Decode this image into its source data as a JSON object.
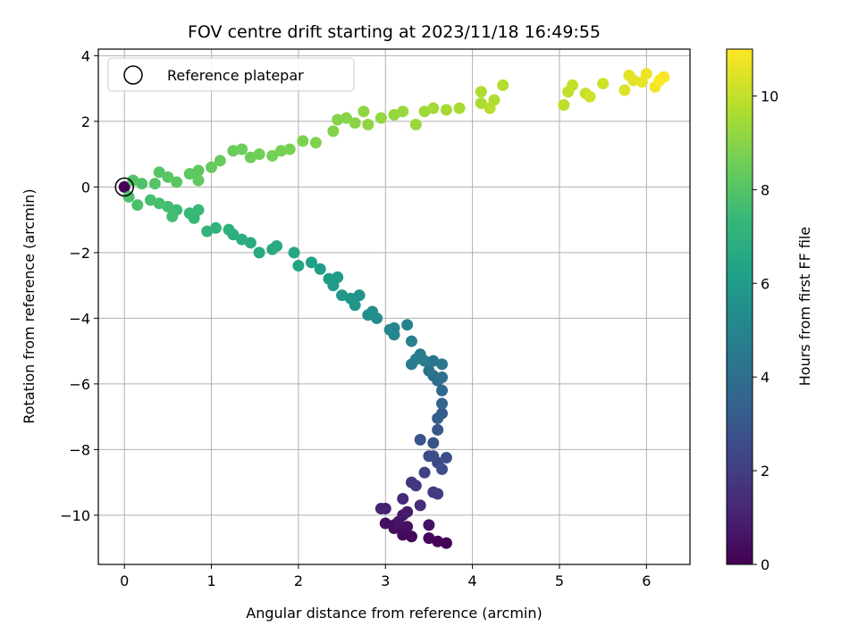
{
  "chart_data": {
    "type": "scatter",
    "title": "FOV centre drift starting at 2023/11/18 16:49:55",
    "xlabel": "Angular distance from reference (arcmin)",
    "ylabel": "Rotation from reference (arcmin)",
    "xlim": [
      -0.3,
      6.5
    ],
    "ylim": [
      -11.5,
      4.2
    ],
    "xticks": [
      0,
      1,
      2,
      3,
      4,
      5,
      6
    ],
    "yticks": [
      4,
      2,
      0,
      -2,
      -4,
      -6,
      -8,
      -10
    ],
    "grid": true,
    "legend": {
      "label": "Reference platepar",
      "placement": "top-left"
    },
    "reference_point": {
      "x": 0,
      "y": 0
    },
    "colorbar": {
      "label": "Hours from first FF file",
      "range": [
        0,
        11
      ],
      "ticks": [
        0,
        2,
        4,
        6,
        8,
        10
      ],
      "colormap": "viridis",
      "colors": [
        "#440154",
        "#482878",
        "#3e4989",
        "#31688e",
        "#26828e",
        "#1f9e89",
        "#35b779",
        "#6ece58",
        "#b5de2b",
        "#fde725"
      ]
    },
    "points": [
      {
        "x": 0.0,
        "y": 0.0,
        "t": 0.0
      },
      {
        "x": 3.7,
        "y": -10.85,
        "t": 0.0
      },
      {
        "x": 3.6,
        "y": -10.8,
        "t": 0.1
      },
      {
        "x": 3.5,
        "y": -10.7,
        "t": 0.15
      },
      {
        "x": 3.3,
        "y": -10.65,
        "t": 0.2
      },
      {
        "x": 3.2,
        "y": -10.6,
        "t": 0.25
      },
      {
        "x": 3.1,
        "y": -10.4,
        "t": 0.3
      },
      {
        "x": 3.2,
        "y": -10.45,
        "t": 0.35
      },
      {
        "x": 3.0,
        "y": -10.25,
        "t": 0.4
      },
      {
        "x": 3.1,
        "y": -10.3,
        "t": 0.45
      },
      {
        "x": 3.25,
        "y": -10.35,
        "t": 0.5
      },
      {
        "x": 3.5,
        "y": -10.3,
        "t": 0.55
      },
      {
        "x": 3.15,
        "y": -10.2,
        "t": 0.6
      },
      {
        "x": 3.2,
        "y": -10.0,
        "t": 0.7
      },
      {
        "x": 3.25,
        "y": -9.9,
        "t": 0.8
      },
      {
        "x": 3.0,
        "y": -9.8,
        "t": 1.0
      },
      {
        "x": 2.95,
        "y": -9.8,
        "t": 1.05
      },
      {
        "x": 3.2,
        "y": -9.5,
        "t": 1.3
      },
      {
        "x": 3.4,
        "y": -9.7,
        "t": 1.4
      },
      {
        "x": 3.3,
        "y": -9.0,
        "t": 1.7
      },
      {
        "x": 3.35,
        "y": -9.1,
        "t": 1.8
      },
      {
        "x": 3.55,
        "y": -9.3,
        "t": 1.9
      },
      {
        "x": 3.6,
        "y": -9.35,
        "t": 1.95
      },
      {
        "x": 3.45,
        "y": -8.7,
        "t": 2.1
      },
      {
        "x": 3.5,
        "y": -8.2,
        "t": 2.4
      },
      {
        "x": 3.6,
        "y": -8.4,
        "t": 2.5
      },
      {
        "x": 3.55,
        "y": -8.2,
        "t": 2.6
      },
      {
        "x": 3.65,
        "y": -8.6,
        "t": 2.65
      },
      {
        "x": 3.7,
        "y": -8.25,
        "t": 2.7
      },
      {
        "x": 3.55,
        "y": -7.8,
        "t": 2.8
      },
      {
        "x": 3.4,
        "y": -7.7,
        "t": 2.9
      },
      {
        "x": 3.6,
        "y": -7.4,
        "t": 3.0
      },
      {
        "x": 3.65,
        "y": -6.9,
        "t": 3.2
      },
      {
        "x": 3.6,
        "y": -7.05,
        "t": 3.3
      },
      {
        "x": 3.65,
        "y": -6.6,
        "t": 3.5
      },
      {
        "x": 3.65,
        "y": -6.2,
        "t": 3.7
      },
      {
        "x": 3.6,
        "y": -5.9,
        "t": 3.9
      },
      {
        "x": 3.55,
        "y": -5.75,
        "t": 4.0
      },
      {
        "x": 3.65,
        "y": -5.8,
        "t": 4.05
      },
      {
        "x": 3.5,
        "y": -5.6,
        "t": 4.2
      },
      {
        "x": 3.55,
        "y": -5.3,
        "t": 4.3
      },
      {
        "x": 3.65,
        "y": -5.4,
        "t": 4.35
      },
      {
        "x": 3.4,
        "y": -5.1,
        "t": 4.5
      },
      {
        "x": 3.45,
        "y": -5.3,
        "t": 4.55
      },
      {
        "x": 3.3,
        "y": -5.4,
        "t": 4.6
      },
      {
        "x": 3.35,
        "y": -5.25,
        "t": 4.65
      },
      {
        "x": 3.3,
        "y": -4.7,
        "t": 4.8
      },
      {
        "x": 3.25,
        "y": -4.2,
        "t": 4.9
      },
      {
        "x": 3.1,
        "y": -4.3,
        "t": 5.0
      },
      {
        "x": 3.05,
        "y": -4.35,
        "t": 5.05
      },
      {
        "x": 3.1,
        "y": -4.5,
        "t": 5.1
      },
      {
        "x": 2.9,
        "y": -4.0,
        "t": 5.3
      },
      {
        "x": 2.85,
        "y": -3.8,
        "t": 5.4
      },
      {
        "x": 2.8,
        "y": -3.9,
        "t": 5.45
      },
      {
        "x": 2.7,
        "y": -3.3,
        "t": 5.6
      },
      {
        "x": 2.65,
        "y": -3.6,
        "t": 5.7
      },
      {
        "x": 2.6,
        "y": -3.4,
        "t": 5.75
      },
      {
        "x": 2.5,
        "y": -3.3,
        "t": 5.8
      },
      {
        "x": 2.4,
        "y": -3.0,
        "t": 5.9
      },
      {
        "x": 2.45,
        "y": -2.75,
        "t": 6.0
      },
      {
        "x": 2.35,
        "y": -2.8,
        "t": 6.05
      },
      {
        "x": 2.25,
        "y": -2.5,
        "t": 6.1
      },
      {
        "x": 2.15,
        "y": -2.3,
        "t": 6.2
      },
      {
        "x": 2.0,
        "y": -2.4,
        "t": 6.4
      },
      {
        "x": 1.95,
        "y": -2.0,
        "t": 6.5
      },
      {
        "x": 1.75,
        "y": -1.8,
        "t": 6.6
      },
      {
        "x": 1.7,
        "y": -1.9,
        "t": 6.65
      },
      {
        "x": 1.55,
        "y": -2.0,
        "t": 6.7
      },
      {
        "x": 1.45,
        "y": -1.7,
        "t": 6.8
      },
      {
        "x": 1.35,
        "y": -1.6,
        "t": 6.85
      },
      {
        "x": 1.25,
        "y": -1.45,
        "t": 6.9
      },
      {
        "x": 1.2,
        "y": -1.3,
        "t": 7.0
      },
      {
        "x": 1.05,
        "y": -1.25,
        "t": 7.1
      },
      {
        "x": 0.95,
        "y": -1.35,
        "t": 7.15
      },
      {
        "x": 0.8,
        "y": -0.95,
        "t": 7.3
      },
      {
        "x": 0.75,
        "y": -0.8,
        "t": 7.4
      },
      {
        "x": 0.85,
        "y": -0.7,
        "t": 7.45
      },
      {
        "x": 0.6,
        "y": -0.7,
        "t": 7.5
      },
      {
        "x": 0.5,
        "y": -0.6,
        "t": 7.6
      },
      {
        "x": 0.55,
        "y": -0.9,
        "t": 7.65
      },
      {
        "x": 0.4,
        "y": -0.5,
        "t": 7.7
      },
      {
        "x": 0.3,
        "y": -0.4,
        "t": 7.75
      },
      {
        "x": 0.15,
        "y": -0.55,
        "t": 7.8
      },
      {
        "x": 0.05,
        "y": -0.3,
        "t": 7.85
      },
      {
        "x": 0.2,
        "y": 0.1,
        "t": 7.9
      },
      {
        "x": 0.1,
        "y": 0.2,
        "t": 7.95
      },
      {
        "x": 0.35,
        "y": 0.1,
        "t": 8.0
      },
      {
        "x": 0.4,
        "y": 0.45,
        "t": 8.05
      },
      {
        "x": 0.5,
        "y": 0.3,
        "t": 8.1
      },
      {
        "x": 0.6,
        "y": 0.15,
        "t": 8.15
      },
      {
        "x": 0.75,
        "y": 0.4,
        "t": 8.2
      },
      {
        "x": 0.85,
        "y": 0.5,
        "t": 8.25
      },
      {
        "x": 0.85,
        "y": 0.2,
        "t": 8.3
      },
      {
        "x": 1.0,
        "y": 0.6,
        "t": 8.35
      },
      {
        "x": 1.1,
        "y": 0.8,
        "t": 8.4
      },
      {
        "x": 1.25,
        "y": 1.1,
        "t": 8.45
      },
      {
        "x": 1.35,
        "y": 1.15,
        "t": 8.5
      },
      {
        "x": 1.45,
        "y": 0.9,
        "t": 8.55
      },
      {
        "x": 1.55,
        "y": 1.0,
        "t": 8.6
      },
      {
        "x": 1.7,
        "y": 0.95,
        "t": 8.65
      },
      {
        "x": 1.8,
        "y": 1.1,
        "t": 8.7
      },
      {
        "x": 1.9,
        "y": 1.15,
        "t": 8.75
      },
      {
        "x": 2.05,
        "y": 1.4,
        "t": 8.8
      },
      {
        "x": 2.2,
        "y": 1.35,
        "t": 8.85
      },
      {
        "x": 2.4,
        "y": 1.7,
        "t": 8.9
      },
      {
        "x": 2.45,
        "y": 2.05,
        "t": 8.95
      },
      {
        "x": 2.55,
        "y": 2.1,
        "t": 9.0
      },
      {
        "x": 2.65,
        "y": 1.95,
        "t": 9.05
      },
      {
        "x": 2.75,
        "y": 2.3,
        "t": 9.1
      },
      {
        "x": 2.8,
        "y": 1.9,
        "t": 9.15
      },
      {
        "x": 2.95,
        "y": 2.1,
        "t": 9.2
      },
      {
        "x": 3.1,
        "y": 2.2,
        "t": 9.25
      },
      {
        "x": 3.2,
        "y": 2.3,
        "t": 9.3
      },
      {
        "x": 3.35,
        "y": 1.9,
        "t": 9.35
      },
      {
        "x": 3.45,
        "y": 2.3,
        "t": 9.4
      },
      {
        "x": 3.55,
        "y": 2.4,
        "t": 9.45
      },
      {
        "x": 3.7,
        "y": 2.35,
        "t": 9.5
      },
      {
        "x": 3.85,
        "y": 2.4,
        "t": 9.55
      },
      {
        "x": 4.1,
        "y": 2.55,
        "t": 9.6
      },
      {
        "x": 4.1,
        "y": 2.9,
        "t": 9.65
      },
      {
        "x": 4.25,
        "y": 2.65,
        "t": 9.7
      },
      {
        "x": 4.35,
        "y": 3.1,
        "t": 9.75
      },
      {
        "x": 4.2,
        "y": 2.4,
        "t": 9.8
      },
      {
        "x": 5.05,
        "y": 2.5,
        "t": 9.9
      },
      {
        "x": 5.1,
        "y": 2.9,
        "t": 10.0
      },
      {
        "x": 5.15,
        "y": 3.1,
        "t": 10.05
      },
      {
        "x": 5.3,
        "y": 2.85,
        "t": 10.1
      },
      {
        "x": 5.5,
        "y": 3.15,
        "t": 10.2
      },
      {
        "x": 5.35,
        "y": 2.75,
        "t": 10.25
      },
      {
        "x": 5.75,
        "y": 2.95,
        "t": 10.4
      },
      {
        "x": 5.85,
        "y": 3.25,
        "t": 10.5
      },
      {
        "x": 5.8,
        "y": 3.4,
        "t": 10.55
      },
      {
        "x": 5.95,
        "y": 3.2,
        "t": 10.6
      },
      {
        "x": 6.0,
        "y": 3.45,
        "t": 10.7
      },
      {
        "x": 6.1,
        "y": 3.05,
        "t": 10.8
      },
      {
        "x": 6.2,
        "y": 3.35,
        "t": 10.9
      },
      {
        "x": 6.15,
        "y": 3.25,
        "t": 10.95
      }
    ]
  }
}
